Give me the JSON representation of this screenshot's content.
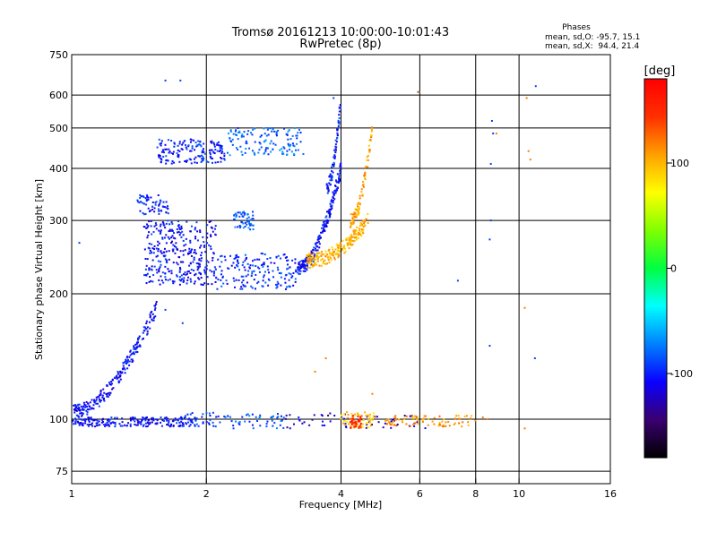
{
  "chart_data": {
    "type": "scatter",
    "title": "Tromsø 20161213 10:00:00-10:01:43",
    "subtitle": "RwPretec (8p)",
    "xlabel": "Frequency [MHz]",
    "ylabel": "Stationary phase Virtual Height [km]",
    "x_scale": "log",
    "y_scale": "log",
    "xlim": [
      1,
      16
    ],
    "ylim": [
      70,
      750
    ],
    "x_ticks": [
      1,
      2,
      4,
      6,
      8,
      10,
      16
    ],
    "y_ticks": [
      75,
      100,
      200,
      300,
      400,
      500,
      600,
      750
    ],
    "grid": true,
    "phases_title": "Phases",
    "phases_line1": "mean, sd,O: -95.7, 15.1",
    "phases_line2": "mean, sd,X:  94.4, 21.4",
    "colorbar": {
      "label": "[deg]",
      "range": [
        -180,
        180
      ],
      "ticks": [
        100,
        0,
        -100
      ],
      "colors": [
        "#000000",
        "#3a0070",
        "#0a00ff",
        "#0080ff",
        "#00ffff",
        "#00ff40",
        "#80ff00",
        "#ffff00",
        "#ffa000",
        "#ff3000",
        "#ff0000"
      ]
    },
    "series": [
      {
        "trace": [
          {
            "f0": 1.0,
            "f1": 1.9,
            "h0": 96,
            "h1": 101,
            "phase": -105,
            "n": 200
          },
          {
            "f0": 1.75,
            "f1": 2.3,
            "h0": 96,
            "h1": 104,
            "phase": -95,
            "n": 40
          },
          {
            "f0": 2.3,
            "f1": 3.0,
            "h0": 95,
            "h1": 103,
            "phase": -85,
            "n": 40
          },
          {
            "f0": 3.0,
            "f1": 4.2,
            "h0": 95,
            "h1": 104,
            "phase": -120,
            "n": 30
          },
          {
            "f0": 4.3,
            "f1": 6.2,
            "h0": 95,
            "h1": 102,
            "phase": -130,
            "n": 30
          },
          {
            "f0": 1.0,
            "f1": 1.55,
            "h0": 105,
            "h1": 185,
            "phase": -105,
            "n": 230,
            "mode": "curve"
          },
          {
            "f0": 1.45,
            "f1": 2.1,
            "h0": 210,
            "h1": 300,
            "phase": -105,
            "n": 330
          },
          {
            "f0": 2.1,
            "f1": 3.2,
            "h0": 205,
            "h1": 250,
            "phase": -95,
            "n": 170
          },
          {
            "f0": 3.2,
            "f1": 4.0,
            "h0": 230,
            "h1": 400,
            "phase": -105,
            "n": 220,
            "mode": "curve"
          },
          {
            "f0": 1.4,
            "f1": 1.65,
            "h0": 310,
            "h1": 345,
            "phase": -100,
            "n": 60
          },
          {
            "f0": 2.3,
            "f1": 2.55,
            "h0": 285,
            "h1": 315,
            "phase": -80,
            "n": 50
          },
          {
            "f0": 1.55,
            "f1": 2.2,
            "h0": 410,
            "h1": 470,
            "phase": -100,
            "n": 160
          },
          {
            "f0": 2.2,
            "f1": 3.3,
            "h0": 430,
            "h1": 500,
            "phase": -80,
            "n": 130
          },
          {
            "f0": 3.7,
            "f1": 4.0,
            "h0": 360,
            "h1": 590,
            "phase": -100,
            "n": 70,
            "mode": "curve"
          }
        ],
        "points": [
          [
            1.62,
            650
          ],
          [
            1.75,
            650
          ],
          [
            3.85,
            590
          ],
          [
            5.95,
            610
          ],
          [
            8.7,
            520
          ],
          [
            10.9,
            630
          ],
          [
            1.62,
            183
          ],
          [
            1.77,
            170
          ],
          [
            8.65,
            300
          ],
          [
            8.65,
            410
          ],
          [
            8.75,
            485
          ],
          [
            1.04,
            265
          ],
          [
            7.3,
            215
          ],
          [
            8.6,
            270
          ],
          [
            10.85,
            140
          ],
          [
            2.3,
            95
          ],
          [
            8.6,
            150
          ]
        ]
      },
      {
        "trace": [
          {
            "f0": 4.0,
            "f1": 4.75,
            "h0": 95,
            "h1": 104,
            "phase": 95,
            "n": 60
          },
          {
            "f0": 4.2,
            "f1": 4.45,
            "h0": 95,
            "h1": 102,
            "phase": 150,
            "n": 40
          },
          {
            "f0": 5.0,
            "f1": 8.0,
            "h0": 96,
            "h1": 102,
            "phase": 110,
            "n": 80
          },
          {
            "f0": 3.35,
            "f1": 4.6,
            "h0": 240,
            "h1": 300,
            "phase": 100,
            "n": 220,
            "mode": "curve"
          },
          {
            "f0": 4.2,
            "f1": 4.7,
            "h0": 300,
            "h1": 500,
            "phase": 105,
            "n": 90,
            "mode": "curve"
          }
        ],
        "points": [
          [
            10.4,
            590
          ],
          [
            10.5,
            440
          ],
          [
            10.6,
            420
          ],
          [
            10.3,
            185
          ],
          [
            5.97,
            610
          ],
          [
            8.9,
            485
          ],
          [
            10.3,
            95
          ],
          [
            3.7,
            140
          ],
          [
            3.5,
            130
          ],
          [
            4.7,
            115
          ],
          [
            8.3,
            101
          ],
          [
            8.5,
            100
          ]
        ]
      }
    ]
  }
}
